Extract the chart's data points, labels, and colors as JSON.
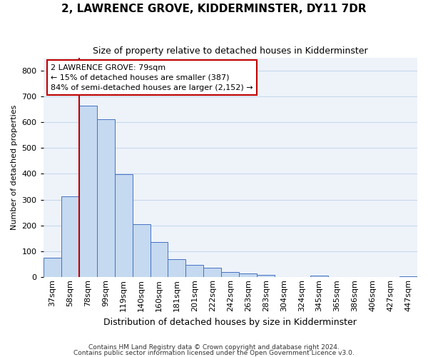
{
  "title": "2, LAWRENCE GROVE, KIDDERMINSTER, DY11 7DR",
  "subtitle": "Size of property relative to detached houses in Kidderminster",
  "xlabel": "Distribution of detached houses by size in Kidderminster",
  "ylabel": "Number of detached properties",
  "footnote1": "Contains HM Land Registry data © Crown copyright and database right 2024.",
  "footnote2": "Contains public sector information licensed under the Open Government Licence v3.0.",
  "annotation_line1": "2 LAWRENCE GROVE: 79sqm",
  "annotation_line2": "← 15% of detached houses are smaller (387)",
  "annotation_line3": "84% of semi-detached houses are larger (2,152) →",
  "bar_color": "#c5d9f0",
  "bar_edge_color": "#4472c4",
  "property_line_color": "#c00000",
  "annotation_box_color": "#ffffff",
  "annotation_box_edge": "#c00000",
  "grid_color": "#c8d8ec",
  "bg_color": "#eef3fa",
  "categories": [
    "37sqm",
    "58sqm",
    "78sqm",
    "99sqm",
    "119sqm",
    "140sqm",
    "160sqm",
    "181sqm",
    "201sqm",
    "222sqm",
    "242sqm",
    "263sqm",
    "283sqm",
    "304sqm",
    "324sqm",
    "345sqm",
    "365sqm",
    "386sqm",
    "406sqm",
    "427sqm",
    "447sqm"
  ],
  "values": [
    75,
    312,
    665,
    612,
    398,
    205,
    137,
    70,
    48,
    37,
    20,
    15,
    10,
    0,
    0,
    5,
    0,
    0,
    0,
    0,
    3
  ],
  "ylim": [
    0,
    850
  ],
  "yticks": [
    0,
    100,
    200,
    300,
    400,
    500,
    600,
    700,
    800
  ],
  "property_line_bar_index": 2,
  "title_fontsize": 11,
  "subtitle_fontsize": 9,
  "xlabel_fontsize": 9,
  "ylabel_fontsize": 8,
  "tick_fontsize": 8,
  "footnote_fontsize": 6.5
}
